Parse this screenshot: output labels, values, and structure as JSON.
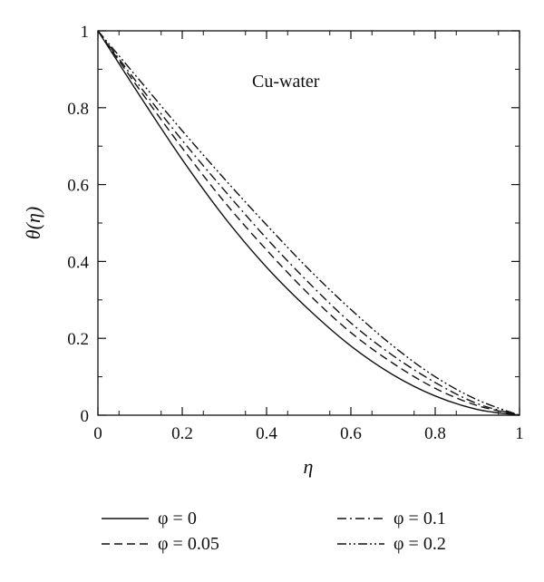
{
  "chart_data": {
    "type": "line",
    "annotation": "Cu-water",
    "xlabel": "η",
    "ylabel": "θ(η)",
    "xlim": [
      0,
      1
    ],
    "ylim": [
      0,
      1
    ],
    "x_ticks": [
      "0",
      "0.2",
      "0.4",
      "0.6",
      "0.8",
      "1"
    ],
    "y_ticks": [
      "0",
      "0.2",
      "0.4",
      "0.6",
      "0.8",
      "1"
    ],
    "grid": false,
    "legend_position": "bottom",
    "x": [
      0,
      0.1,
      0.2,
      0.3,
      0.4,
      0.5,
      0.6,
      0.7,
      0.8,
      0.9,
      1.0
    ],
    "series": [
      {
        "name": "φ = 0",
        "style": "solid",
        "values": [
          1.0,
          0.83,
          0.665,
          0.515,
          0.385,
          0.275,
          0.18,
          0.105,
          0.05,
          0.015,
          0.0
        ]
      },
      {
        "name": "φ = 0.05",
        "style": "dashed",
        "values": [
          1.0,
          0.845,
          0.695,
          0.555,
          0.43,
          0.315,
          0.215,
          0.135,
          0.07,
          0.025,
          0.0
        ]
      },
      {
        "name": "φ = 0.1",
        "style": "dashdot",
        "values": [
          1.0,
          0.855,
          0.715,
          0.585,
          0.46,
          0.345,
          0.24,
          0.155,
          0.085,
          0.03,
          0.0
        ]
      },
      {
        "name": "φ = 0.2",
        "style": "dashdotdot",
        "values": [
          1.0,
          0.87,
          0.74,
          0.615,
          0.495,
          0.38,
          0.275,
          0.18,
          0.1,
          0.04,
          0.0
        ]
      }
    ]
  }
}
